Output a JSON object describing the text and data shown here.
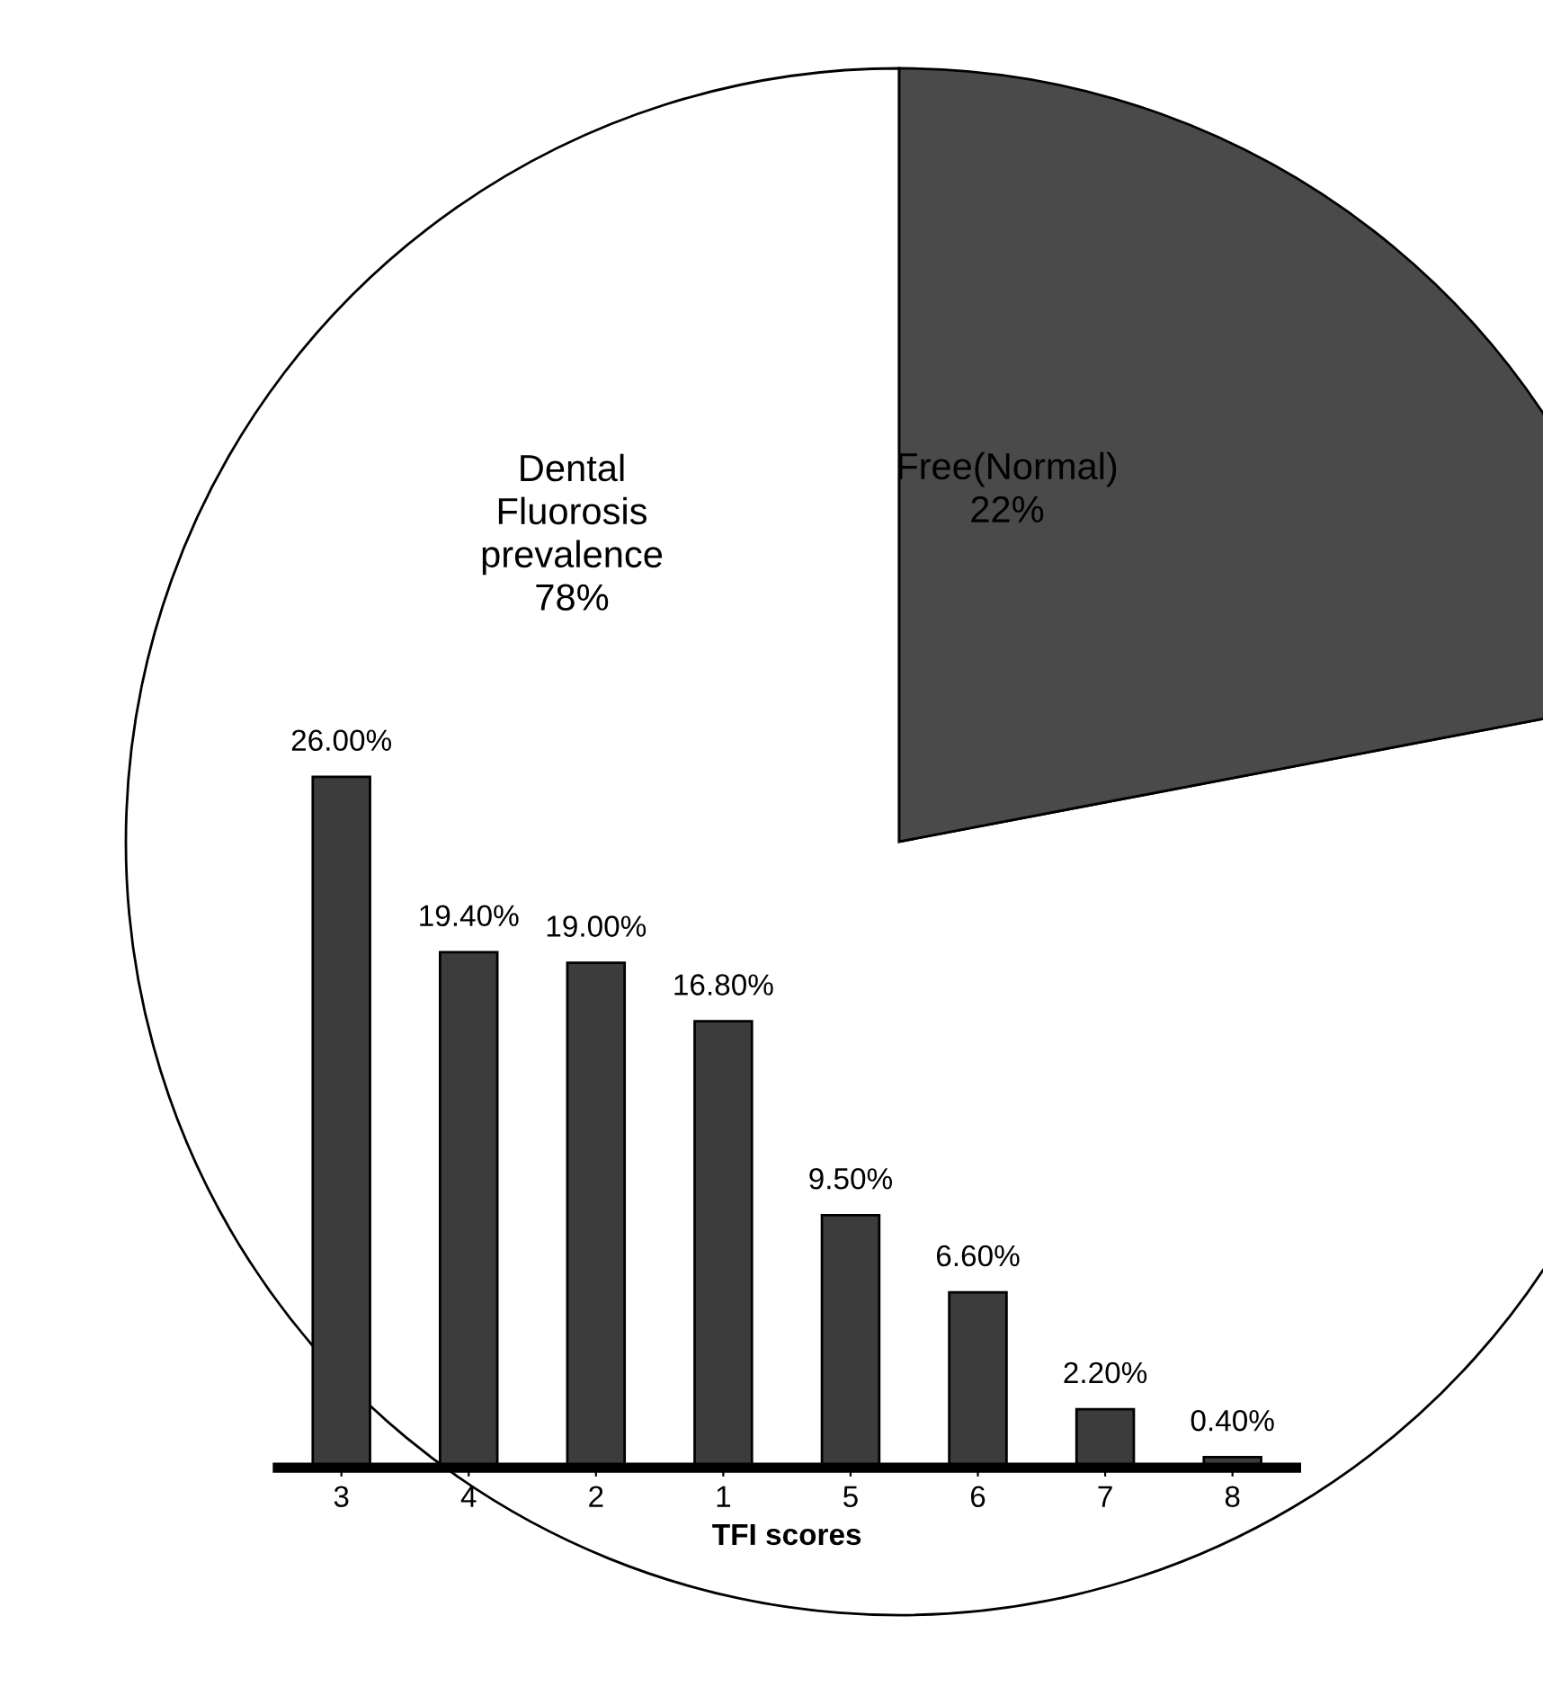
{
  "chart_data": [
    {
      "type": "pie",
      "categories": [
        "Dental\nFluorosis\nprevalence",
        "Free(Normal)"
      ],
      "values": [
        78,
        22
      ],
      "colors": [
        "#ffffff",
        "#4a4a4a"
      ],
      "value_labels": [
        "78%",
        "22%"
      ]
    },
    {
      "type": "bar",
      "xlabel": "TFI scores",
      "categories": [
        "3",
        "4",
        "2",
        "1",
        "5",
        "6",
        "7",
        "8"
      ],
      "values": [
        26.0,
        19.4,
        19.0,
        16.8,
        9.5,
        6.6,
        2.2,
        0.4
      ],
      "value_labels": [
        "26.00%",
        "19.40%",
        "19.00%",
        "16.80%",
        "9.50%",
        "6.60%",
        "2.20%",
        "0.40%"
      ],
      "color": "#3c3c3c"
    }
  ]
}
